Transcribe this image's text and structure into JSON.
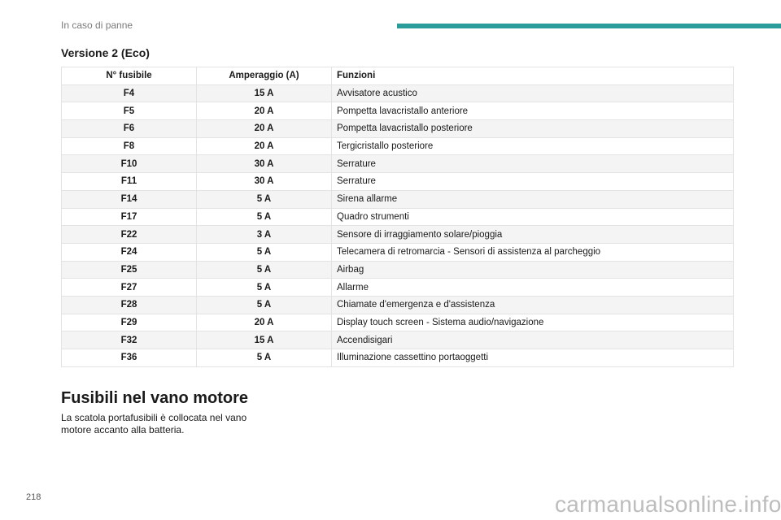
{
  "header": {
    "section": "In caso di panne",
    "accent_color": "#2a9d9a"
  },
  "table_title": "Versione 2 (Eco)",
  "table": {
    "headers": [
      "N° fusibile",
      "Amperaggio (A)",
      "Funzioni"
    ],
    "rows": [
      {
        "num": "F4",
        "amp": "15 A",
        "func": "Avvisatore acustico"
      },
      {
        "num": "F5",
        "amp": "20 A",
        "func": "Pompetta lavacristallo anteriore"
      },
      {
        "num": "F6",
        "amp": "20 A",
        "func": "Pompetta lavacristallo posteriore"
      },
      {
        "num": "F8",
        "amp": "20 A",
        "func": "Tergicristallo posteriore"
      },
      {
        "num": "F10",
        "amp": "30 A",
        "func": "Serrature"
      },
      {
        "num": "F11",
        "amp": "30 A",
        "func": "Serrature"
      },
      {
        "num": "F14",
        "amp": "5 A",
        "func": "Sirena allarme"
      },
      {
        "num": "F17",
        "amp": "5 A",
        "func": "Quadro strumenti"
      },
      {
        "num": "F22",
        "amp": "3 A",
        "func": "Sensore di irraggiamento solare/pioggia"
      },
      {
        "num": "F24",
        "amp": "5 A",
        "func": "Telecamera di retromarcia - Sensori di assistenza al parcheggio"
      },
      {
        "num": "F25",
        "amp": "5 A",
        "func": "Airbag"
      },
      {
        "num": "F27",
        "amp": "5 A",
        "func": "Allarme"
      },
      {
        "num": "F28",
        "amp": "5 A",
        "func": "Chiamate d'emergenza e d'assistenza"
      },
      {
        "num": "F29",
        "amp": "20 A",
        "func": "Display touch screen - Sistema audio/navigazione"
      },
      {
        "num": "F32",
        "amp": "15 A",
        "func": "Accendisigari"
      },
      {
        "num": "F36",
        "amp": "5 A",
        "func": "Illuminazione cassettino portaoggetti"
      }
    ]
  },
  "engine_section": {
    "title": "Fusibili nel vano motore",
    "text": "La scatola portafusibili è collocata nel vano motore accanto alla batteria."
  },
  "page_number": "218",
  "watermark": "carmanualsonline.info"
}
